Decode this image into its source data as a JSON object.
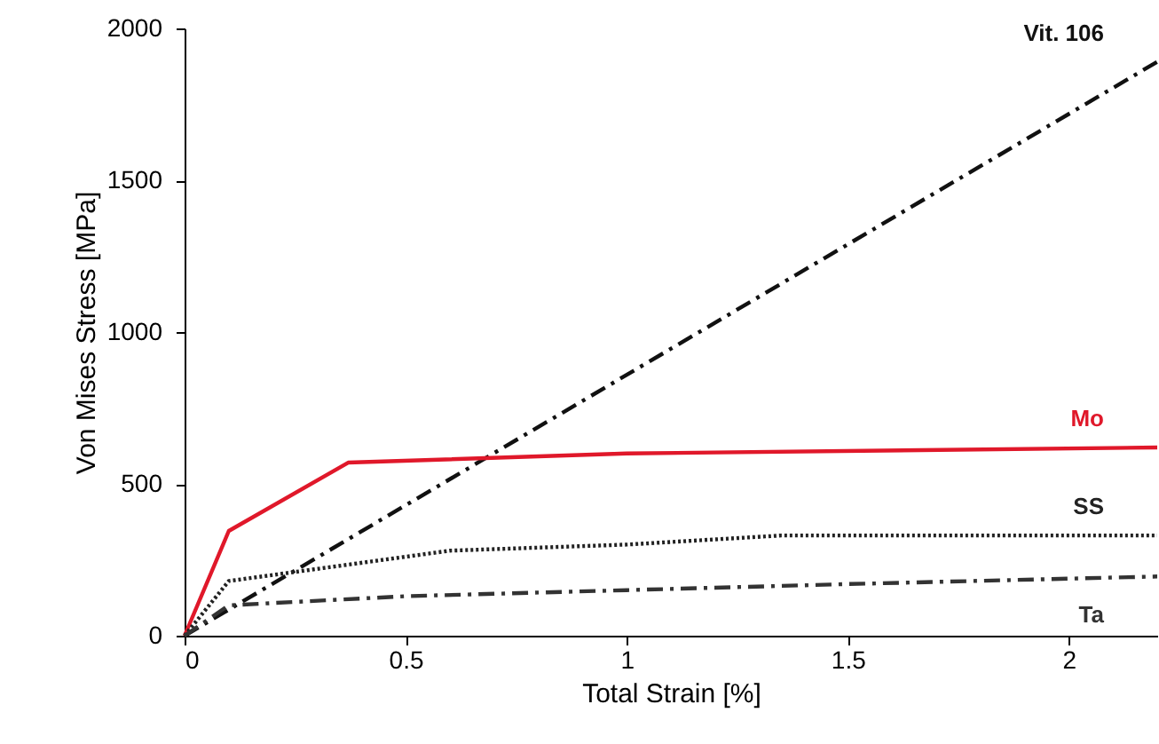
{
  "chart_data": {
    "type": "line",
    "xlabel": "Total Strain [%]",
    "ylabel": "Von Mises Stress [MPa]",
    "xlim": [
      0,
      2.2
    ],
    "ylim": [
      0,
      2000
    ],
    "xticks": [
      0,
      0.5,
      1,
      1.5,
      2
    ],
    "yticks": [
      0,
      500,
      1000,
      1500,
      2000
    ],
    "grid": false,
    "marker": "none",
    "series": [
      {
        "name": "Vit. 106",
        "color": "#111111",
        "line_style": "dashed",
        "x": [
          0,
          2.2
        ],
        "values": [
          0,
          1890
        ]
      },
      {
        "name": "Mo",
        "color": "#e0182a",
        "line_style": "solid",
        "x": [
          0,
          0.1,
          0.37,
          1,
          2.2
        ],
        "values": [
          0,
          345,
          570,
          600,
          620
        ]
      },
      {
        "name": "SS",
        "color": "#222222",
        "line_style": "dotted",
        "x": [
          0,
          0.1,
          0.6,
          1,
          1.35,
          2.2
        ],
        "values": [
          0,
          180,
          280,
          300,
          330,
          330
        ]
      },
      {
        "name": "Ta",
        "color": "#333333",
        "line_style": "dashed",
        "x": [
          0,
          0.1,
          0.5,
          1,
          1.5,
          2.2
        ],
        "values": [
          0,
          100,
          130,
          150,
          170,
          195
        ]
      }
    ]
  }
}
